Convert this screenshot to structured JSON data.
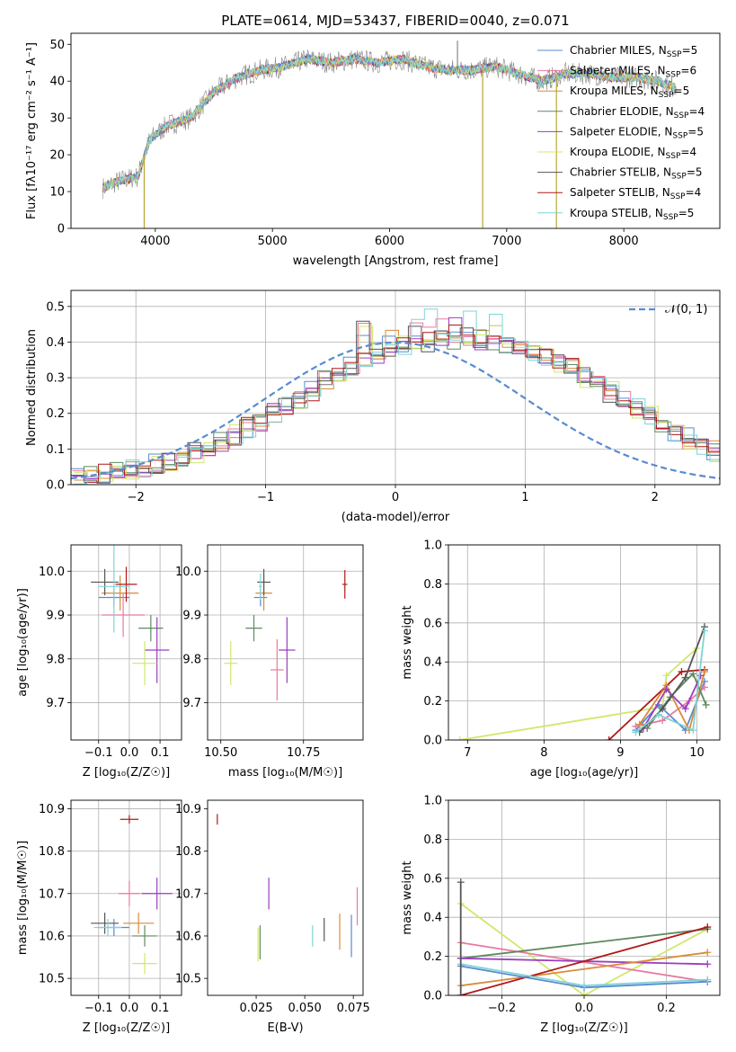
{
  "colors": {
    "chabrier_miles": "#5a8bd0",
    "salpeter_miles": "#e87aa0",
    "kroupa_miles": "#d88c3a",
    "chabrier_elodie": "#5f8a5f",
    "salpeter_elodie": "#9a3dc0",
    "kroupa_elodie": "#d0e86a",
    "chabrier_stelib": "#555555",
    "salpeter_stelib": "#b01818",
    "kroupa_stelib": "#7fd3d6",
    "normal_curve": "#5a8bd0",
    "grid": "#b0b0b0"
  },
  "chart_data": [
    {
      "id": "spectrum",
      "type": "line",
      "title": "PLATE=0614, MJD=53437, FIBERID=0040, z=0.071",
      "xlabel": "wavelength [Angstrom, rest frame]",
      "ylabel": "Flux [fλ10⁻¹⁷ erg cm⁻² s⁻¹ A⁻¹]",
      "xlim": [
        3280,
        8820
      ],
      "ylim": [
        0,
        53
      ],
      "xticks": [
        4000,
        5000,
        6000,
        7000,
        8000
      ],
      "yticks": [
        0,
        10,
        20,
        30,
        40,
        50
      ],
      "grid": false,
      "legend_position": "upper-right",
      "continuum": {
        "x": [
          3550,
          3700,
          3850,
          3950,
          4100,
          4300,
          4500,
          4700,
          4900,
          5100,
          5300,
          5500,
          5700,
          5900,
          6100,
          6300,
          6500,
          6700,
          6900,
          7100,
          7300,
          7500,
          7700,
          7900,
          8100,
          8300,
          8450
        ],
        "y": [
          11,
          13,
          14,
          24,
          28,
          30,
          37,
          41,
          43,
          44,
          46,
          45,
          46,
          45,
          46,
          44,
          43,
          43,
          44,
          42,
          40,
          42,
          42,
          41,
          41,
          40,
          38
        ]
      },
      "spikes": [
        {
          "x": 3905,
          "y": 0
        },
        {
          "x": 6795,
          "y": 0
        },
        {
          "x": 7425,
          "y": 0
        },
        {
          "x": 6580,
          "y": 51
        }
      ],
      "series": [
        {
          "name": "Chabrier MILES, N<sub>SSP</sub>=5",
          "color_key": "chabrier_miles"
        },
        {
          "name": "Salpeter MILES, N<sub>SSP</sub>=6",
          "color_key": "salpeter_miles"
        },
        {
          "name": "Kroupa MILES, N<sub>SSP</sub>=5",
          "color_key": "kroupa_miles"
        },
        {
          "name": "Chabrier ELODIE, N<sub>SSP</sub>=4",
          "color_key": "chabrier_elodie"
        },
        {
          "name": "Salpeter ELODIE, N<sub>SSP</sub>=5",
          "color_key": "salpeter_elodie"
        },
        {
          "name": "Kroupa ELODIE, N<sub>SSP</sub>=4",
          "color_key": "kroupa_elodie"
        },
        {
          "name": "Chabrier STELIB, N<sub>SSP</sub>=5",
          "color_key": "chabrier_stelib"
        },
        {
          "name": "Salpeter STELIB, N<sub>SSP</sub>=4",
          "color_key": "salpeter_stelib"
        },
        {
          "name": "Kroupa STELIB, N<sub>SSP</sub>=5",
          "color_key": "kroupa_stelib"
        }
      ]
    },
    {
      "id": "residuals",
      "type": "line",
      "xlabel": "(data-model)/error",
      "ylabel": "Normed distribution",
      "xlim": [
        -2.5,
        2.5
      ],
      "ylim": [
        0,
        0.545
      ],
      "xticks": [
        -2,
        -1,
        0,
        1,
        2
      ],
      "yticks": [
        0.0,
        0.1,
        0.2,
        0.3,
        0.4,
        0.5
      ],
      "grid": true,
      "legend_position": "upper-right",
      "curve_label": "𝒩(0, 1)",
      "bin_width": 0.1,
      "bin_start": -2.5,
      "base_counts": [
        0.02,
        0.025,
        0.03,
        0.035,
        0.04,
        0.05,
        0.06,
        0.065,
        0.075,
        0.09,
        0.105,
        0.12,
        0.14,
        0.16,
        0.18,
        0.2,
        0.22,
        0.24,
        0.265,
        0.29,
        0.31,
        0.33,
        0.35,
        0.37,
        0.38,
        0.39,
        0.395,
        0.4,
        0.405,
        0.41,
        0.41,
        0.405,
        0.4,
        0.395,
        0.385,
        0.375,
        0.36,
        0.345,
        0.325,
        0.3,
        0.28,
        0.26,
        0.24,
        0.215,
        0.19,
        0.17,
        0.15,
        0.13,
        0.11,
        0.095,
        0.08,
        0.065,
        0.055,
        0.045,
        0.04,
        0.033,
        0.028,
        0.023,
        0.02,
        0.018
      ],
      "peaks": [
        0.46,
        0.48,
        0.45,
        0.44,
        0.48,
        0.45,
        0.46,
        0.45,
        0.5
      ]
    },
    {
      "id": "age-vs-Z",
      "type": "scatter",
      "xlabel": "Z [log₁₀(Z/Z☉)]",
      "ylabel": "age  [log₁₀(age/yr)]",
      "xlim": [
        -0.19,
        0.17
      ],
      "ylim": [
        9.615,
        10.06
      ],
      "xticks": [
        -0.1,
        0.0,
        0.1
      ],
      "xtick_labels": [
        "−0.1",
        "0.0",
        "0.1"
      ],
      "yticks": [
        9.7,
        9.8,
        9.9,
        10.0
      ],
      "grid": true,
      "points": [
        {
          "c": "chabrier_miles",
          "x": -0.05,
          "y": 9.94,
          "ex": 0.1,
          "ey": 0.04
        },
        {
          "c": "salpeter_miles",
          "x": -0.02,
          "y": 9.9,
          "ex": 0.14,
          "ey": 0.1
        },
        {
          "c": "kroupa_miles",
          "x": -0.03,
          "y": 9.95,
          "ex": 0.12,
          "ey": 0.08
        },
        {
          "c": "chabrier_elodie",
          "x": 0.07,
          "y": 9.87,
          "ex": 0.08,
          "ey": 0.06
        },
        {
          "c": "salpeter_elodie",
          "x": 0.09,
          "y": 9.82,
          "ex": 0.08,
          "ey": 0.15
        },
        {
          "c": "kroupa_elodie",
          "x": 0.05,
          "y": 9.79,
          "ex": 0.08,
          "ey": 0.1
        },
        {
          "c": "chabrier_stelib",
          "x": -0.08,
          "y": 9.975,
          "ex": 0.09,
          "ey": 0.06
        },
        {
          "c": "salpeter_stelib",
          "x": -0.01,
          "y": 9.97,
          "ex": 0.07,
          "ey": 0.08
        },
        {
          "c": "kroupa_stelib",
          "x": -0.05,
          "y": 9.965,
          "ex": 0.1,
          "ey": 0.21
        }
      ]
    },
    {
      "id": "age-vs-mass",
      "type": "scatter",
      "xlabel": "mass [log₁₀(M/M☉)]",
      "xlim": [
        10.46,
        10.93
      ],
      "ylim": [
        9.615,
        10.06
      ],
      "xticks": [
        10.5,
        10.75
      ],
      "xtick_labels": [
        "10.50",
        "10.75"
      ],
      "yticks": [
        9.7,
        9.8,
        9.9,
        10.0
      ],
      "grid": true,
      "points": [
        {
          "c": "chabrier_miles",
          "x": 10.62,
          "y": 9.94,
          "ex": 0.04,
          "ey": 0.04
        },
        {
          "c": "salpeter_miles",
          "x": 10.67,
          "y": 9.775,
          "ex": 0.04,
          "ey": 0.14
        },
        {
          "c": "kroupa_miles",
          "x": 10.63,
          "y": 9.95,
          "ex": 0.05,
          "ey": 0.08
        },
        {
          "c": "chabrier_elodie",
          "x": 10.6,
          "y": 9.87,
          "ex": 0.05,
          "ey": 0.06
        },
        {
          "c": "salpeter_elodie",
          "x": 10.7,
          "y": 9.82,
          "ex": 0.05,
          "ey": 0.15
        },
        {
          "c": "kroupa_elodie",
          "x": 10.53,
          "y": 9.79,
          "ex": 0.04,
          "ey": 0.1
        },
        {
          "c": "chabrier_stelib",
          "x": 10.63,
          "y": 9.975,
          "ex": 0.04,
          "ey": 0.06
        },
        {
          "c": "salpeter_stelib",
          "x": 10.875,
          "y": 9.97,
          "ex": 0.015,
          "ey": 0.065
        },
        {
          "c": "kroupa_stelib",
          "x": 10.62,
          "y": 9.965,
          "ex": 0.01,
          "ey": 0.06
        }
      ]
    },
    {
      "id": "weight-vs-age",
      "type": "line",
      "xlabel": "age  [log₁₀(age/yr)]",
      "ylabel": "mass weight",
      "xlim": [
        6.75,
        10.3
      ],
      "ylim": [
        0,
        1.0
      ],
      "xticks": [
        7,
        8,
        9,
        10
      ],
      "yticks": [
        0.0,
        0.2,
        0.4,
        0.6,
        0.8,
        1.0
      ],
      "grid": true,
      "series": [
        {
          "c": "kroupa_elodie",
          "x": [
            6.9,
            9.55,
            9.6,
            10.0
          ],
          "y": [
            0.0,
            0.17,
            0.33,
            0.47
          ]
        },
        {
          "c": "salpeter_stelib",
          "x": [
            8.85,
            9.8,
            10.1
          ],
          "y": [
            0.0,
            0.35,
            0.36
          ]
        },
        {
          "c": "chabrier_miles",
          "x": [
            9.2,
            9.5,
            9.85,
            10.1
          ],
          "y": [
            0.05,
            0.18,
            0.05,
            0.3
          ]
        },
        {
          "c": "salpeter_miles",
          "x": [
            9.2,
            9.55,
            9.9,
            10.1
          ],
          "y": [
            0.07,
            0.1,
            0.2,
            0.27
          ]
        },
        {
          "c": "kroupa_miles",
          "x": [
            9.25,
            9.6,
            9.9,
            10.1
          ],
          "y": [
            0.08,
            0.28,
            0.05,
            0.35
          ]
        },
        {
          "c": "chabrier_elodie",
          "x": [
            9.35,
            9.65,
            9.95,
            10.12
          ],
          "y": [
            0.06,
            0.22,
            0.34,
            0.18
          ]
        },
        {
          "c": "salpeter_elodie",
          "x": [
            9.3,
            9.6,
            9.85,
            10.05
          ],
          "y": [
            0.06,
            0.26,
            0.16,
            0.33
          ]
        },
        {
          "c": "chabrier_stelib",
          "x": [
            9.25,
            9.55,
            9.85,
            10.1
          ],
          "y": [
            0.04,
            0.16,
            0.32,
            0.58
          ]
        },
        {
          "c": "kroupa_stelib",
          "x": [
            9.2,
            9.5,
            9.95,
            10.1
          ],
          "y": [
            0.04,
            0.13,
            0.05,
            0.56
          ]
        }
      ]
    },
    {
      "id": "mass-vs-Z",
      "type": "scatter",
      "xlabel": "Z [log₁₀(Z/Z☉)]",
      "ylabel": "mass [log₁₀(M/M☉)]",
      "xlim": [
        -0.19,
        0.17
      ],
      "ylim": [
        10.46,
        10.92
      ],
      "xticks": [
        -0.1,
        0.0,
        0.1
      ],
      "xtick_labels": [
        "−0.1",
        "0.0",
        "0.1"
      ],
      "yticks": [
        10.5,
        10.6,
        10.7,
        10.8,
        10.9
      ],
      "grid": true,
      "points": [
        {
          "c": "chabrier_miles",
          "x": -0.05,
          "y": 10.62,
          "ex": 0.1,
          "ey": 0.04
        },
        {
          "c": "salpeter_miles",
          "x": 0.0,
          "y": 10.7,
          "ex": 0.07,
          "ey": 0.06
        },
        {
          "c": "kroupa_miles",
          "x": 0.03,
          "y": 10.63,
          "ex": 0.1,
          "ey": 0.05
        },
        {
          "c": "chabrier_elodie",
          "x": 0.05,
          "y": 10.6,
          "ex": 0.08,
          "ey": 0.05
        },
        {
          "c": "salpeter_elodie",
          "x": 0.09,
          "y": 10.7,
          "ex": 0.1,
          "ey": 0.075
        },
        {
          "c": "kroupa_elodie",
          "x": 0.05,
          "y": 10.535,
          "ex": 0.08,
          "ey": 0.05
        },
        {
          "c": "chabrier_stelib",
          "x": -0.08,
          "y": 10.63,
          "ex": 0.09,
          "ey": 0.05
        },
        {
          "c": "salpeter_stelib",
          "x": 0.0,
          "y": 10.875,
          "ex": 0.06,
          "ey": 0.02
        },
        {
          "c": "kroupa_stelib",
          "x": -0.07,
          "y": 10.62,
          "ex": 0.09,
          "ey": 0.04
        }
      ]
    },
    {
      "id": "mass-vs-ebv",
      "type": "scatter",
      "xlabel": "E(B-V)",
      "xlim": [
        0.0,
        0.08
      ],
      "ylim": [
        10.46,
        10.92
      ],
      "xticks": [
        0.025,
        0.05,
        0.075
      ],
      "xtick_labels": [
        "0.025",
        "0.050",
        "0.075"
      ],
      "yticks": [
        10.5,
        10.6,
        10.7,
        10.8,
        10.9
      ],
      "grid": false,
      "points": [
        {
          "c": "salpeter_stelib",
          "x": 0.005,
          "y": 10.875,
          "ex": 0,
          "ey": 0.025
        },
        {
          "c": "kroupa_elodie",
          "x": 0.026,
          "y": 10.58,
          "ex": 0,
          "ey": 0.08
        },
        {
          "c": "chabrier_elodie",
          "x": 0.027,
          "y": 10.585,
          "ex": 0,
          "ey": 0.08
        },
        {
          "c": "salpeter_elodie",
          "x": 0.0315,
          "y": 10.7,
          "ex": 0,
          "ey": 0.075
        },
        {
          "c": "kroupa_stelib",
          "x": 0.054,
          "y": 10.6,
          "ex": 0,
          "ey": 0.05
        },
        {
          "c": "chabrier_stelib",
          "x": 0.06,
          "y": 10.615,
          "ex": 0,
          "ey": 0.055
        },
        {
          "c": "kroupa_miles",
          "x": 0.068,
          "y": 10.61,
          "ex": 0,
          "ey": 0.085
        },
        {
          "c": "chabrier_miles",
          "x": 0.074,
          "y": 10.6,
          "ex": 0,
          "ey": 0.1
        },
        {
          "c": "salpeter_miles",
          "x": 0.077,
          "y": 10.67,
          "ex": 0,
          "ey": 0.09
        }
      ]
    },
    {
      "id": "weight-vs-Z",
      "type": "line",
      "xlabel": "Z [log₁₀(Z/Z☉)]",
      "ylabel": "mass weight",
      "xlim": [
        -0.33,
        0.33
      ],
      "ylim": [
        0,
        1.0
      ],
      "xticks": [
        -0.2,
        0.0,
        0.2
      ],
      "xtick_labels": [
        "−0.2",
        "0.0",
        "0.2"
      ],
      "yticks": [
        0.0,
        0.2,
        0.4,
        0.6,
        0.8,
        1.0
      ],
      "grid": true,
      "series": [
        {
          "c": "kroupa_elodie",
          "x": [
            -0.3,
            0.0,
            0.3
          ],
          "y": [
            0.47,
            0.0,
            0.34
          ]
        },
        {
          "c": "salpeter_miles",
          "x": [
            -0.3,
            0.3
          ],
          "y": [
            0.27,
            0.07
          ]
        },
        {
          "c": "chabrier_elodie",
          "x": [
            -0.3,
            0.3
          ],
          "y": [
            0.19,
            0.34
          ]
        },
        {
          "c": "salpeter_elodie",
          "x": [
            -0.3,
            0.3
          ],
          "y": [
            0.19,
            0.16
          ]
        },
        {
          "c": "kroupa_miles",
          "x": [
            -0.3,
            0.3
          ],
          "y": [
            0.05,
            0.22
          ]
        },
        {
          "c": "salpeter_stelib",
          "x": [
            -0.3,
            0.3
          ],
          "y": [
            0.0,
            0.35
          ]
        },
        {
          "c": "chabrier_miles",
          "x": [
            -0.3,
            0.0,
            0.3
          ],
          "y": [
            0.15,
            0.04,
            0.07
          ]
        },
        {
          "c": "kroupa_stelib",
          "x": [
            -0.3,
            0.0,
            0.3
          ],
          "y": [
            0.16,
            0.05,
            0.08
          ]
        },
        {
          "c": "chabrier_stelib",
          "x": [
            -0.3,
            -0.3
          ],
          "y": [
            0.0,
            0.58
          ]
        }
      ]
    }
  ]
}
